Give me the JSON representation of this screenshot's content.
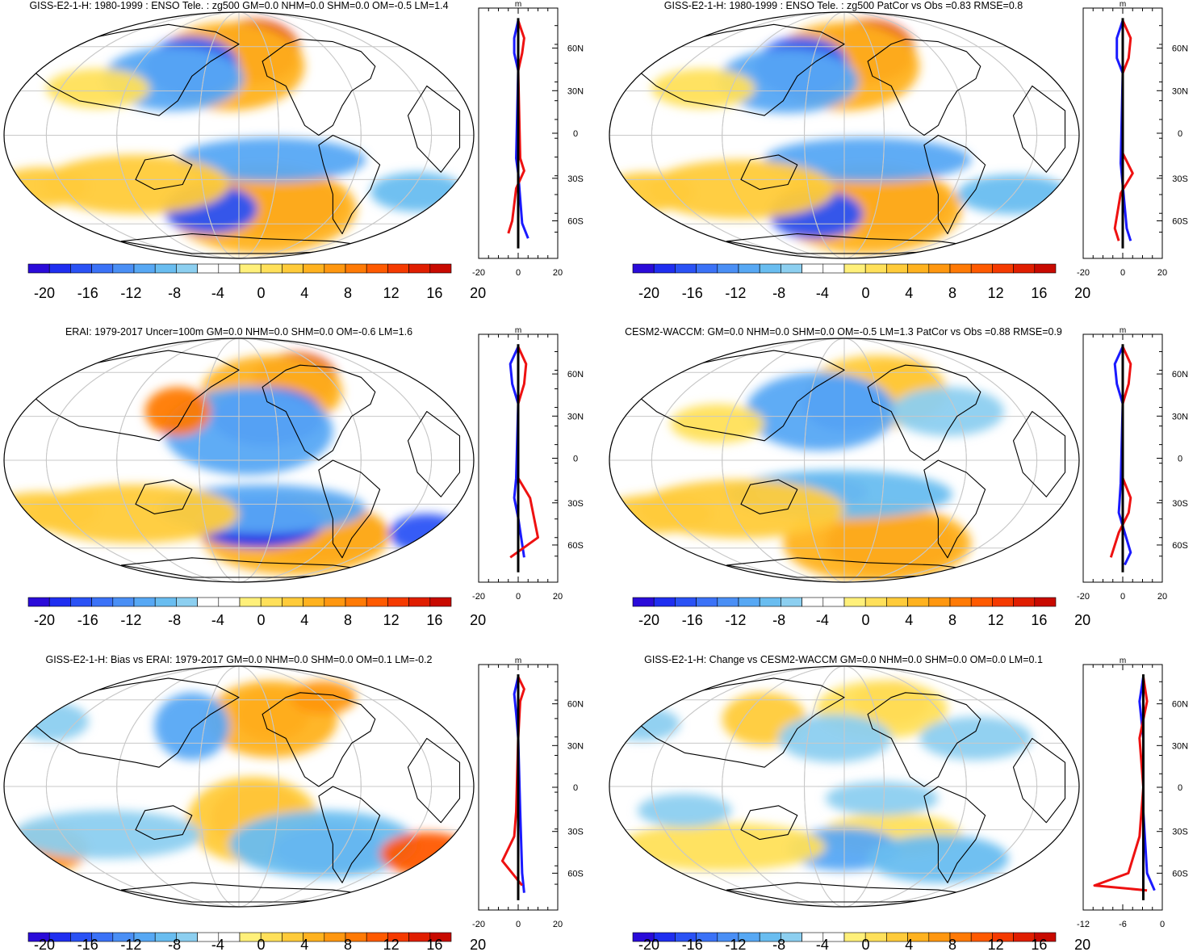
{
  "colorbar": {
    "colors": [
      "#2a0bd9",
      "#1f2ef0",
      "#2a52f5",
      "#3b72f7",
      "#4a8ff5",
      "#57a8f4",
      "#69bdf0",
      "#8ccff0",
      "#ffffff",
      "#ffffff",
      "#fff07a",
      "#ffe05a",
      "#ffcb3a",
      "#ffb21f",
      "#ff9710",
      "#ff7a05",
      "#ff5a00",
      "#f53a00",
      "#e01e00",
      "#c80a00"
    ],
    "labels": [
      "-20",
      "-16",
      "-12",
      "-8",
      "-4",
      "0",
      "4",
      "8",
      "12",
      "16",
      "20"
    ]
  },
  "lat_labels": [
    "60N",
    "30N",
    "0",
    "30S",
    "60S"
  ],
  "profile_unit": "m",
  "panels": [
    {
      "id": "p1",
      "title": "GISS-E2-1-H: 1980-1999 : ENSO Tele. : zg500 GM=0.0 NHM=0.0 SHM=0.0 OM=-0.5 LM=1.4",
      "xticks": [
        "-20",
        "0",
        "20"
      ]
    },
    {
      "id": "p2",
      "title": "GISS-E2-1-H: 1980-1999 : ENSO Tele. : zg500 PatCor vs Obs =0.83 RMSE=0.8",
      "xticks": [
        "-20",
        "0",
        "20"
      ]
    },
    {
      "id": "p3",
      "title": "ERAI: 1979-2017 Uncer=100m GM=0.0 NHM=0.0 SHM=0.0 OM=-0.6 LM=1.6",
      "xticks": [
        "-20",
        "0",
        "20"
      ]
    },
    {
      "id": "p4",
      "title": "CESM2-WACCM: GM=0.0 NHM=0.0 SHM=0.0 OM=-0.5 LM=1.3 PatCor vs Obs =0.88 RMSE=0.9",
      "xticks": [
        "-20",
        "0",
        "20"
      ]
    },
    {
      "id": "p5",
      "title": "GISS-E2-1-H: Bias vs ERAI: 1979-2017 GM=0.0 NHM=0.0 SHM=0.0 OM=0.1 LM=-0.2",
      "xticks": [
        "-20",
        "0",
        "20"
      ]
    },
    {
      "id": "p6",
      "title": "GISS-E2-1-H: Change vs CESM2-WACCM GM=0.0 NHM=0.0 SHM=0.0 OM=0.0 LM=0.1",
      "xticks": [
        "-12",
        "-6",
        "0"
      ]
    }
  ]
}
